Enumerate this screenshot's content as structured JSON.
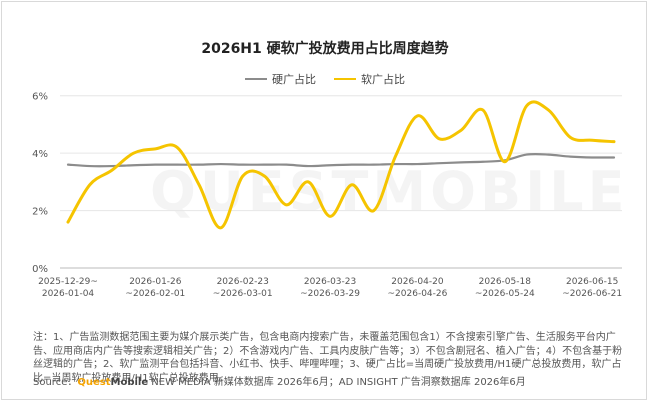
{
  "title": "2026H1 硬软广投放费用占比周度趋势",
  "watermark": "QUESTMOBILE",
  "colors": {
    "hard": "#8c8c8c",
    "soft": "#f5c400",
    "grid": "#e6e6e6",
    "axis": "#bbbbbb"
  },
  "chart_data": {
    "type": "line",
    "title": "2026H1 硬软广投放费用占比周度趋势",
    "ylim": [
      0,
      6.2
    ],
    "yticks": [
      {
        "value": 0,
        "label": "0%"
      },
      {
        "value": 2,
        "label": "2%"
      },
      {
        "value": 4,
        "label": "4%"
      },
      {
        "value": 6,
        "label": "6%"
      }
    ],
    "xticks": [
      {
        "index": 0,
        "line1": "2025-12-29~",
        "line2": "2026-01-04"
      },
      {
        "index": 4,
        "line1": "2026-01-26",
        "line2": "~2026-02-01"
      },
      {
        "index": 8,
        "line1": "2026-02-23",
        "line2": "~2026-03-01"
      },
      {
        "index": 12,
        "line1": "2026-03-23",
        "line2": "~2026-03-29"
      },
      {
        "index": 16,
        "line1": "2026-04-20",
        "line2": "~2026-04-26"
      },
      {
        "index": 20,
        "line1": "2026-05-18",
        "line2": "~2026-05-24"
      },
      {
        "index": 24,
        "line1": "2026-06-15",
        "line2": "~2026-06-21"
      }
    ],
    "legend_position": "top-center",
    "grid": true,
    "series": [
      {
        "name": "硬广占比",
        "key": "hard",
        "values": [
          3.6,
          3.55,
          3.55,
          3.58,
          3.6,
          3.6,
          3.6,
          3.62,
          3.6,
          3.6,
          3.6,
          3.55,
          3.58,
          3.6,
          3.6,
          3.62,
          3.62,
          3.65,
          3.68,
          3.7,
          3.75,
          3.95,
          3.95,
          3.88,
          3.85,
          3.85
        ]
      },
      {
        "name": "软广占比",
        "key": "soft",
        "values": [
          1.6,
          2.9,
          3.4,
          4.0,
          4.15,
          4.2,
          2.9,
          1.4,
          3.2,
          3.2,
          2.2,
          3.0,
          1.8,
          2.9,
          2.0,
          3.9,
          5.3,
          4.5,
          4.8,
          5.5,
          3.7,
          5.65,
          5.5,
          4.55,
          4.45,
          4.4
        ]
      }
    ]
  },
  "notes": "注：1、广告监测数据范围主要为媒介展示类广告，包含电商内搜索广告，未覆盖范围包含1）不含搜索引擎广告、生活服务平台内广告、应用商店内广告等搜索逻辑相关广告；2）不含游戏内广告、工具内皮肤广告等；3）不包含剧冠名、植入广告；4）不包含基于粉丝逻辑的广告；2、软广监测平台包括抖音、小红书、快手、哔哩哔哩；3、硬广占比=当周硬广投放费用/H1硬广总投放费用，软广占比=当周软广投放费用/H1软广总投放费用。",
  "source": {
    "prefix": "Source：",
    "logo_a": "Quest",
    "logo_b": "Mobile",
    "text": " NEW MEDIA 新媒体数据库 2026年6月；AD INSIGHT 广告洞察数据库 2026年6月"
  }
}
